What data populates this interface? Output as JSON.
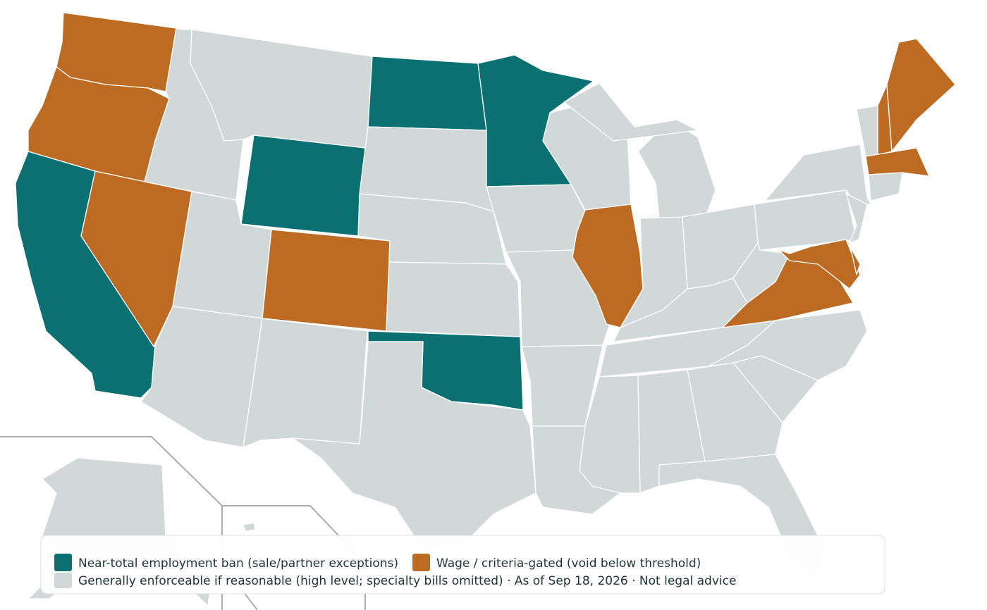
{
  "legend": [
    {
      "label": "Near-total employment ban (sale/partner exceptions)",
      "color": "#0b7071"
    },
    {
      "label": "Wage / criteria-gated (void below threshold)",
      "color": "#bd6a22"
    },
    {
      "label": "Generally enforceable if reasonable (high level; specialty bills omitted) · As of Sep 18, 2026 · Not legal advice",
      "color": "#d1d8d8"
    }
  ]
}
